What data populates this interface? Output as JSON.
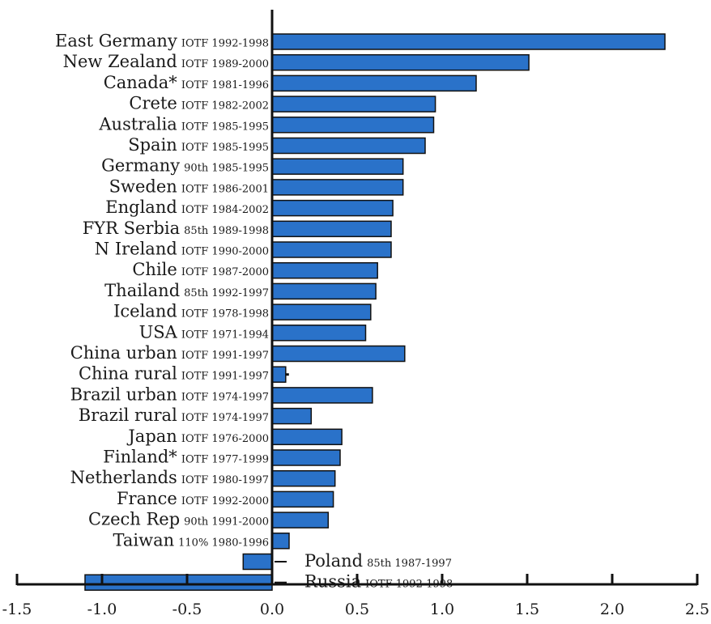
{
  "chart_data": {
    "type": "bar",
    "orientation": "horizontal",
    "title": "",
    "xlabel": "",
    "ylabel": "",
    "xlim": [
      -1.5,
      2.5
    ],
    "x_ticks": [
      "-1.5",
      "-1.0",
      "-0.5",
      "0.0",
      "0.5",
      "1.0",
      "1.5",
      "2.0",
      "2.5"
    ],
    "x_tick_values": [
      -1.5,
      -1.0,
      -0.5,
      0.0,
      0.5,
      1.0,
      1.5,
      2.0,
      2.5
    ],
    "grid": false,
    "categories": [
      {
        "name": "East Germany",
        "note": "IOTF 1992-1998"
      },
      {
        "name": "New Zealand",
        "note": "IOTF 1989-2000"
      },
      {
        "name": "Canada*",
        "note": "IOTF 1981-1996"
      },
      {
        "name": "Crete",
        "note": "IOTF 1982-2002"
      },
      {
        "name": "Australia",
        "note": "IOTF 1985-1995"
      },
      {
        "name": "Spain",
        "note": "IOTF 1985-1995"
      },
      {
        "name": "Germany",
        "note": "90th 1985-1995"
      },
      {
        "name": "Sweden",
        "note": "IOTF 1986-2001"
      },
      {
        "name": "England",
        "note": "IOTF 1984-2002"
      },
      {
        "name": "FYR Serbia",
        "note": "85th 1989-1998"
      },
      {
        "name": "N Ireland",
        "note": "IOTF 1990-2000"
      },
      {
        "name": "Chile",
        "note": "IOTF 1987-2000"
      },
      {
        "name": "Thailand",
        "note": "85th 1992-1997"
      },
      {
        "name": "Iceland",
        "note": "IOTF 1978-1998"
      },
      {
        "name": "USA",
        "note": "IOTF 1971-1994"
      },
      {
        "name": "China urban",
        "note": "IOTF 1991-1997"
      },
      {
        "name": "China rural",
        "note": "IOTF 1991-1997"
      },
      {
        "name": "Brazil urban",
        "note": "IOTF 1974-1997"
      },
      {
        "name": "Brazil rural",
        "note": "IOTF 1974-1997"
      },
      {
        "name": "Japan",
        "note": "IOTF 1976-2000"
      },
      {
        "name": "Finland*",
        "note": "IOTF 1977-1999"
      },
      {
        "name": "Netherlands",
        "note": "IOTF 1980-1997"
      },
      {
        "name": "France",
        "note": "IOTF 1992-2000"
      },
      {
        "name": "Czech Rep",
        "note": "90th 1991-2000"
      },
      {
        "name": "Taiwan",
        "note": "110% 1980-1996"
      },
      {
        "name": "Poland",
        "note": "85th 1987-1997"
      },
      {
        "name": "Russia",
        "note": "IOTF 1992-1998"
      }
    ],
    "values": [
      2.31,
      1.51,
      1.2,
      0.96,
      0.95,
      0.9,
      0.77,
      0.77,
      0.71,
      0.7,
      0.7,
      0.62,
      0.61,
      0.58,
      0.55,
      0.78,
      0.08,
      0.59,
      0.23,
      0.41,
      0.4,
      0.37,
      0.36,
      0.33,
      0.1,
      -0.17,
      -1.1
    ],
    "bar_color": "#2a72c9"
  }
}
